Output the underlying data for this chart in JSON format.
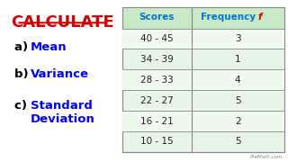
{
  "title": "CALCULATE",
  "items": [
    {
      "label": "a) ",
      "value": "Mean"
    },
    {
      "label": "b) ",
      "value": "Variance"
    },
    {
      "label": "c) ",
      "value": "Standard\nDeviation"
    }
  ],
  "col_headers": [
    "Scores",
    "Frequency f"
  ],
  "rows": [
    [
      "40 - 45",
      "3"
    ],
    [
      "34 - 39",
      "1"
    ],
    [
      "28 - 33",
      "4"
    ],
    [
      "22 - 27",
      "5"
    ],
    [
      "16 - 21",
      "2"
    ],
    [
      "10 - 15",
      "5"
    ]
  ],
  "bg_color": "#ffffff",
  "title_color": "#cc0000",
  "label_color": "#000000",
  "value_color": "#0000ee",
  "header_color": "#0077cc",
  "freq_italic_color": "#cc0000",
  "table_bg": "#e8f4e8",
  "table_header_bg": "#c8e8c8",
  "watermark": "PreMath.com"
}
